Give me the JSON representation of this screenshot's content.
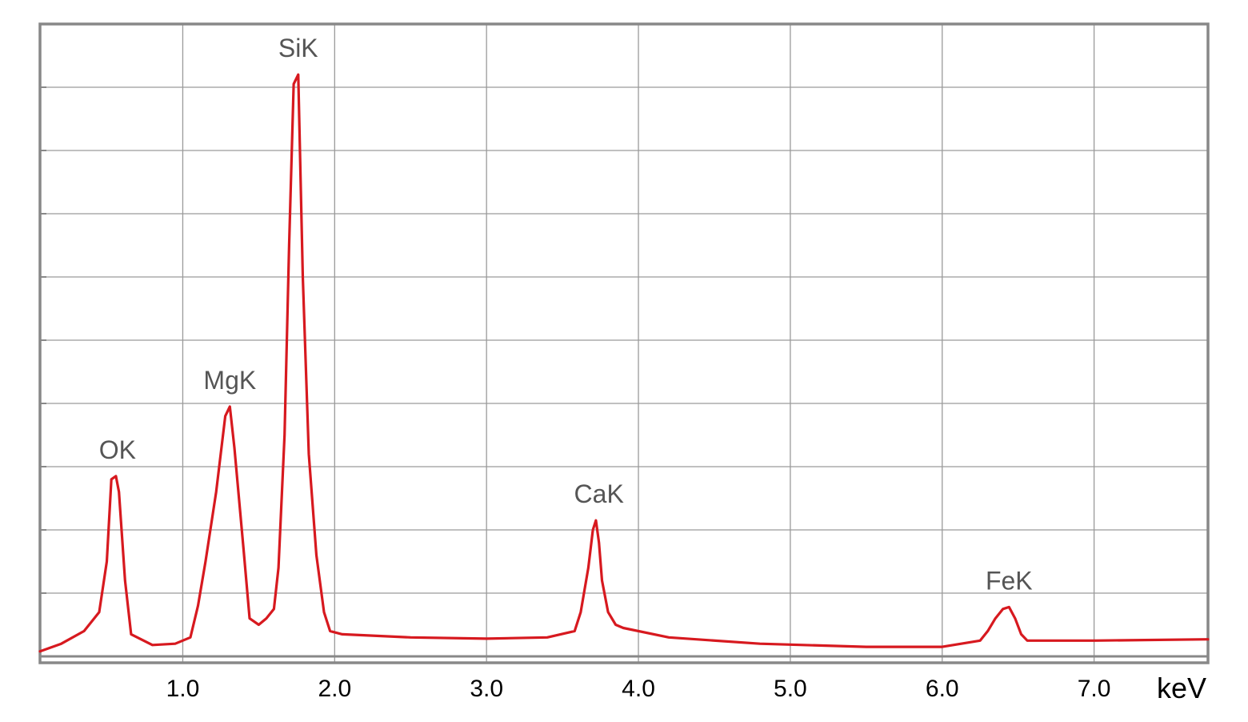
{
  "chart_data": {
    "type": "line",
    "title": "",
    "xlabel": "keV",
    "ylabel": "",
    "xlim": [
      0.06,
      7.75
    ],
    "ylim": [
      0,
      10
    ],
    "x_ticks": [
      1.0,
      2.0,
      3.0,
      4.0,
      5.0,
      6.0,
      7.0
    ],
    "x_tick_labels": [
      "1.0",
      "2.0",
      "3.0",
      "4.0",
      "5.0",
      "6.0",
      "7.0"
    ],
    "y_gridlines": [
      1,
      2,
      3,
      4,
      5,
      6,
      7,
      8,
      9
    ],
    "grid": true,
    "legend": "none",
    "line_color": "#d7191f",
    "series": [
      {
        "x": [
          0.06,
          0.2,
          0.35,
          0.45,
          0.5,
          0.53,
          0.56,
          0.58,
          0.62,
          0.66,
          0.8,
          0.95,
          1.05,
          1.1,
          1.15,
          1.22,
          1.28,
          1.31,
          1.34,
          1.4,
          1.44,
          1.5,
          1.55,
          1.6,
          1.63,
          1.67,
          1.7,
          1.73,
          1.76,
          1.79,
          1.83,
          1.88,
          1.93,
          1.97,
          2.05,
          2.5,
          3.0,
          3.4,
          3.58,
          3.62,
          3.67,
          3.7,
          3.72,
          3.74,
          3.76,
          3.8,
          3.85,
          3.9,
          4.2,
          4.8,
          5.5,
          6.0,
          6.25,
          6.3,
          6.35,
          6.4,
          6.44,
          6.48,
          6.52,
          6.56,
          6.6,
          7.0,
          7.75
        ],
        "y": [
          0.08,
          0.2,
          0.4,
          0.7,
          1.5,
          2.8,
          2.85,
          2.6,
          1.2,
          0.35,
          0.18,
          0.2,
          0.3,
          0.8,
          1.5,
          2.6,
          3.8,
          3.95,
          3.3,
          1.7,
          0.6,
          0.5,
          0.6,
          0.75,
          1.4,
          3.5,
          6.5,
          9.05,
          9.2,
          6.0,
          3.2,
          1.6,
          0.7,
          0.4,
          0.35,
          0.3,
          0.28,
          0.3,
          0.4,
          0.7,
          1.4,
          2.0,
          2.15,
          1.8,
          1.2,
          0.7,
          0.5,
          0.45,
          0.3,
          0.2,
          0.15,
          0.15,
          0.25,
          0.4,
          0.6,
          0.75,
          0.78,
          0.6,
          0.35,
          0.25,
          0.25,
          0.25,
          0.27
        ]
      }
    ],
    "annotations": [
      {
        "text": "OK",
        "x": 0.57,
        "y": 2.85
      },
      {
        "text": "MgK",
        "x": 1.31,
        "y": 3.95
      },
      {
        "text": "SiK",
        "x": 1.76,
        "y": 9.2
      },
      {
        "text": "CaK",
        "x": 3.74,
        "y": 2.15
      },
      {
        "text": "FeK",
        "x": 6.44,
        "y": 0.78
      }
    ]
  }
}
